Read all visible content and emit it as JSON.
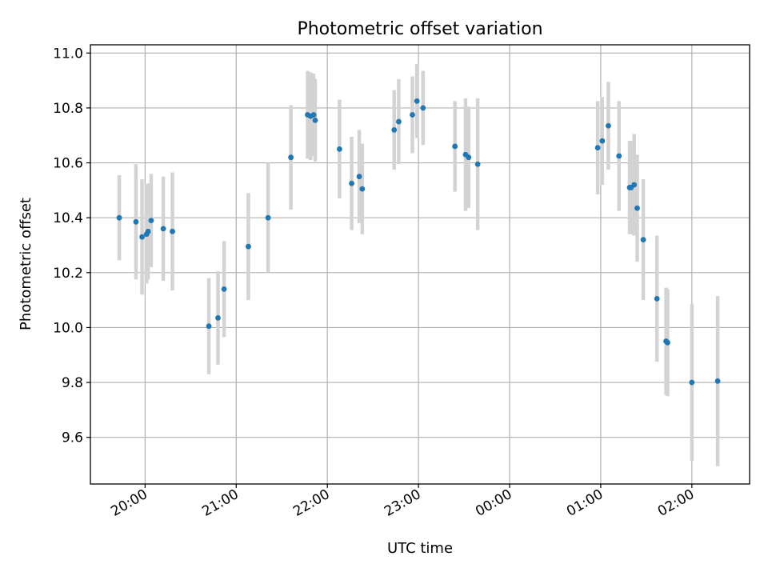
{
  "chart_data": {
    "type": "scatter",
    "title": "Photometric offset variation",
    "xlabel": "UTC time",
    "ylabel": "Photometric offset",
    "x_tick_labels": [
      "20:00",
      "21:00",
      "22:00",
      "23:00",
      "00:00",
      "01:00",
      "02:00"
    ],
    "y_tick_labels": [
      "9.6",
      "9.8",
      "10.0",
      "10.2",
      "10.4",
      "10.6",
      "10.8",
      "11.0"
    ],
    "grid": true,
    "colors": {
      "marker": "#1f77b4",
      "errorbar": "#d3d3d3"
    },
    "series": [
      {
        "x": [
          "19:43",
          "19:54",
          "19:58",
          "20:01",
          "20:02",
          "20:04",
          "20:12",
          "20:18",
          "20:42",
          "20:48",
          "20:52",
          "21:08",
          "21:21",
          "21:36",
          "21:47",
          "21:49",
          "21:51",
          "21:52",
          "22:08",
          "22:16",
          "22:21",
          "22:23",
          "22:44",
          "22:47",
          "22:56",
          "22:59",
          "23:03",
          "23:24",
          "23:31",
          "23:33",
          "23:39",
          "00:58",
          "01:01",
          "01:05",
          "01:12",
          "01:19",
          "01:20",
          "01:22",
          "01:24",
          "01:28",
          "01:37",
          "01:43",
          "01:44",
          "02:00",
          "02:17"
        ],
        "y": [
          10.4,
          10.385,
          10.33,
          10.34,
          10.35,
          10.39,
          10.36,
          10.35,
          10.005,
          10.035,
          10.14,
          10.295,
          10.4,
          10.62,
          10.775,
          10.77,
          10.775,
          10.755,
          10.65,
          10.525,
          10.55,
          10.505,
          10.72,
          10.75,
          10.775,
          10.825,
          10.8,
          10.66,
          10.63,
          10.62,
          10.595,
          10.655,
          10.68,
          10.735,
          10.625,
          10.51,
          10.51,
          10.52,
          10.435,
          10.32,
          10.105,
          9.95,
          9.945,
          9.8,
          9.805
        ],
        "yerr": [
          0.155,
          0.21,
          0.21,
          0.18,
          0.175,
          0.17,
          0.19,
          0.215,
          0.175,
          0.17,
          0.175,
          0.195,
          0.2,
          0.19,
          0.16,
          0.16,
          0.15,
          0.15,
          0.18,
          0.17,
          0.17,
          0.165,
          0.145,
          0.155,
          0.14,
          0.135,
          0.135,
          0.165,
          0.205,
          0.185,
          0.24,
          0.17,
          0.16,
          0.16,
          0.2,
          0.17,
          0.17,
          0.185,
          0.195,
          0.22,
          0.23,
          0.195,
          0.195,
          0.285,
          0.31
        ]
      }
    ],
    "xlim": [
      "19:24",
      "02:38"
    ],
    "ylim": [
      9.43,
      11.03
    ]
  }
}
